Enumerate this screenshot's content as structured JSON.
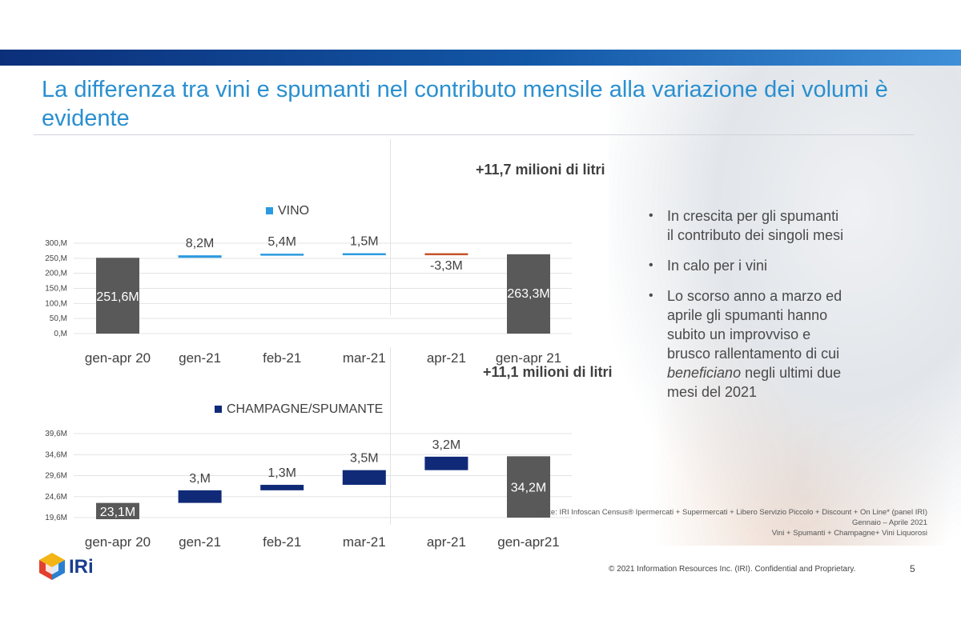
{
  "slide": {
    "title": "La differenza tra vini e spumanti nel contributo mensile alla variazione dei volumi è evidente",
    "bullets": [
      {
        "parts": [
          {
            "text": "In crescita per gli spumanti il contributo dei singoli mesi",
            "italic": false
          }
        ]
      },
      {
        "parts": [
          {
            "text": "In calo per i vini",
            "italic": false
          }
        ]
      },
      {
        "parts": [
          {
            "text": "Lo scorso anno a marzo ed aprile gli spumanti hanno subito un improvviso e brusco rallentamento di cui ",
            "italic": false
          },
          {
            "text": "beneficiano",
            "italic": true
          },
          {
            "text": " negli ultimi due mesi del 2021",
            "italic": false
          }
        ]
      }
    ],
    "source_lines": [
      "Fonte: IRI Infoscan Census® Ipermercati + Supermercati + Libero Servizio Piccolo + Discount + On Line* (panel IRI)",
      "Gennaio – Aprile 2021",
      "Vini + Spumanti + Champagne+ Vini Liquorosi"
    ],
    "logo_text": "IRi",
    "copyright": "© 2021 Information Resources Inc. (IRI). Confidential and Proprietary.",
    "page_number": "5"
  },
  "colors": {
    "title": "#2a8fd0",
    "vino_legend": "#2a9be0",
    "total_bar": "#595959",
    "negative_bar": "#c4532a",
    "spumante_bar": "#102a78"
  },
  "chart_data": [
    {
      "type": "bar",
      "subtype": "waterfall",
      "legend": "VINO",
      "legend_color": "#2a9be0",
      "total_label": "+11,7 milioni di litri",
      "categories": [
        "gen-apr 20",
        "gen-21",
        "feb-21",
        "mar-21",
        "apr-21",
        "gen-apr 21"
      ],
      "values": [
        251.6,
        8.2,
        5.4,
        1.5,
        -3.3,
        263.3
      ],
      "data_labels": [
        "251,6M",
        "8,2M",
        "5,4M",
        "1,5M",
        "-3,3M",
        "263,3M"
      ],
      "y_ticks": [
        "0,M",
        "50,M",
        "100,M",
        "150,M",
        "200,M",
        "250,M",
        "300,M"
      ],
      "y_tick_values": [
        0,
        50,
        100,
        150,
        200,
        250,
        300
      ],
      "ylim": [
        0,
        300
      ],
      "unit": "M litri",
      "grid": true
    },
    {
      "type": "bar",
      "subtype": "waterfall",
      "legend": "CHAMPAGNE/SPUMANTE",
      "legend_color": "#102a78",
      "total_label": "+11,1 milioni di litri",
      "categories": [
        "gen-apr 20",
        "gen-21",
        "feb-21",
        "mar-21",
        "apr-21",
        "gen-apr21"
      ],
      "values": [
        23.1,
        3.0,
        1.3,
        3.5,
        3.2,
        34.2
      ],
      "data_labels": [
        "23,1M",
        "3,M",
        "1,3M",
        "3,5M",
        "3,2M",
        "34,2M"
      ],
      "y_ticks": [
        "19,6M",
        "24,6M",
        "29,6M",
        "34,6M",
        "39,6M"
      ],
      "y_tick_values": [
        19.6,
        24.6,
        29.6,
        34.6,
        39.6
      ],
      "ylim": [
        19.6,
        39.6
      ],
      "unit": "M litri",
      "grid": true
    }
  ]
}
